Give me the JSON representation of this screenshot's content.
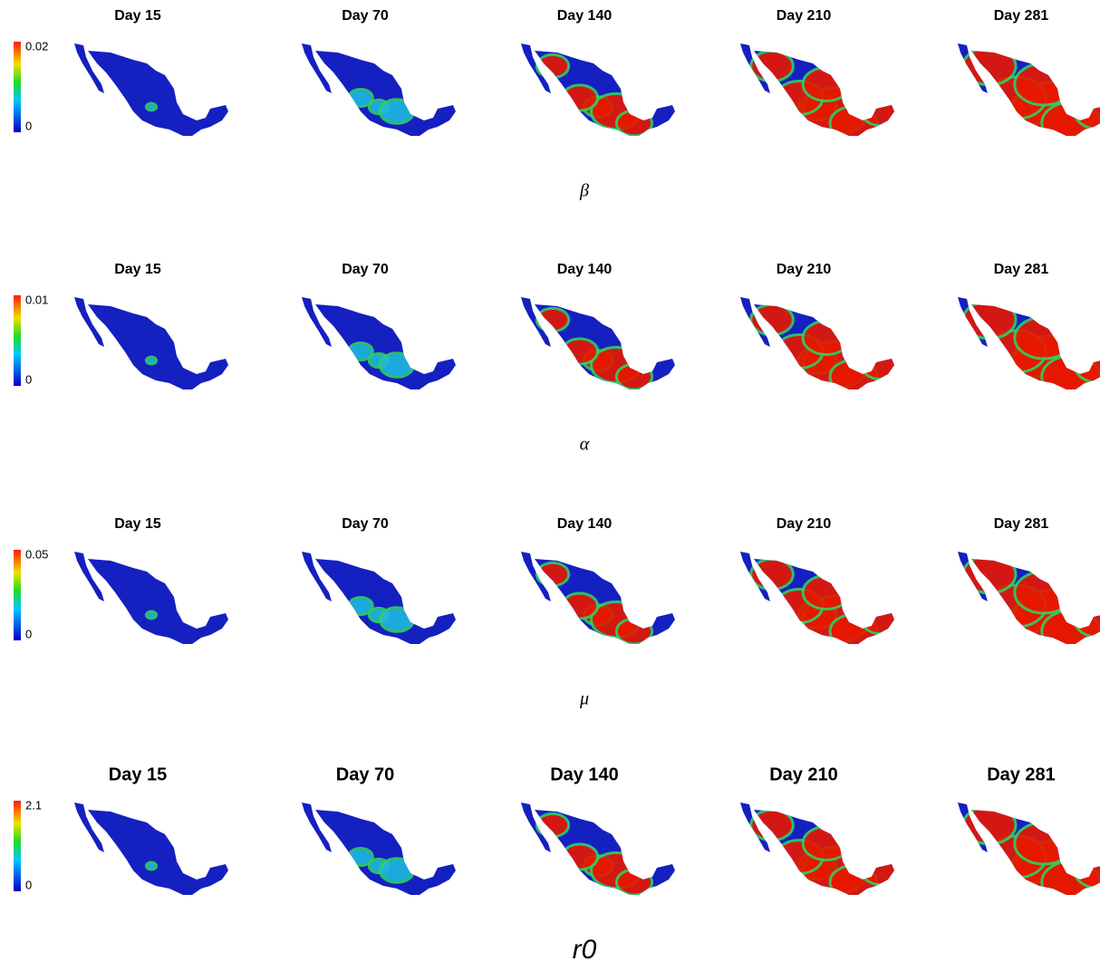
{
  "rows": [
    {
      "panels": [
        "Day 15",
        "Day 70",
        "Day 140",
        "Day 210",
        "Day 281"
      ],
      "colorbar": {
        "max": "0.02",
        "min": "0"
      },
      "label": "β"
    },
    {
      "panels": [
        "Day 15",
        "Day 70",
        "Day 140",
        "Day 210",
        "Day 281"
      ],
      "colorbar": {
        "max": "0.01",
        "min": "0"
      },
      "label": "α"
    },
    {
      "panels": [
        "Day 15",
        "Day 70",
        "Day 140",
        "Day 210",
        "Day 281"
      ],
      "colorbar": {
        "max": "0.05",
        "min": "0"
      },
      "label": "μ"
    },
    {
      "panels": [
        "Day 15",
        "Day 70",
        "Day 140",
        "Day 210",
        "Day 281"
      ],
      "colorbar": {
        "max": "2.1",
        "min": "0"
      },
      "label": "r0"
    }
  ]
}
